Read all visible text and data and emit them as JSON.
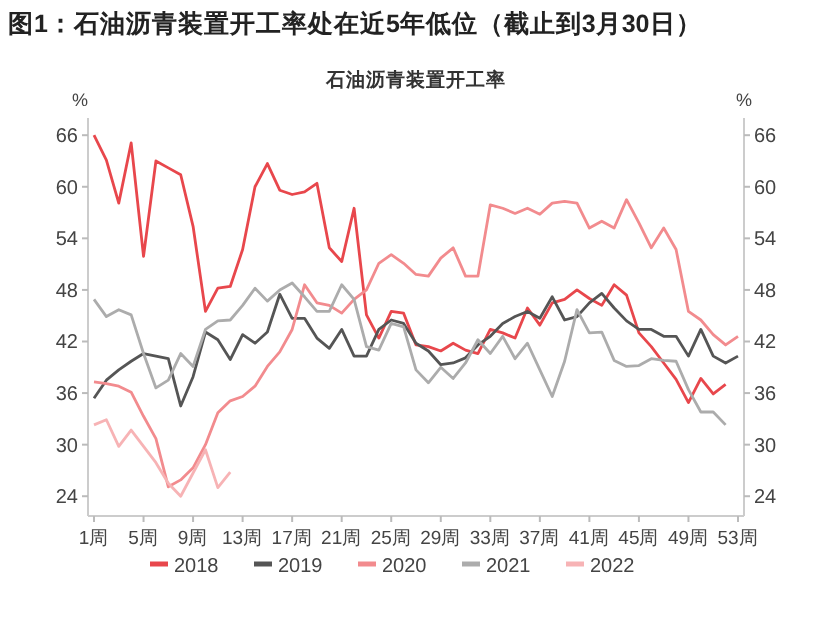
{
  "chart_data": {
    "type": "line",
    "title": "图1：石油沥青装置开工率处在近5年低位（截止到3月30日）",
    "subtitle": "石油沥青装置开工率",
    "ylabel": "%",
    "y2label": "%",
    "categories": [
      "1周",
      null,
      null,
      null,
      "5周",
      null,
      null,
      null,
      "9周",
      null,
      null,
      null,
      "13周",
      null,
      null,
      null,
      "17周",
      null,
      null,
      null,
      "21周",
      null,
      null,
      null,
      "25周",
      null,
      null,
      null,
      "29周",
      null,
      null,
      null,
      "33周",
      null,
      null,
      null,
      "37周",
      null,
      null,
      null,
      "41周",
      null,
      null,
      null,
      "45周",
      null,
      null,
      null,
      "49周",
      null,
      null,
      null,
      "53周"
    ],
    "ylim": [
      21.7,
      68
    ],
    "yticks": [
      24,
      30,
      36,
      42,
      48,
      54,
      60,
      66
    ],
    "y2lim": [
      21.7,
      68
    ],
    "y2ticks": [
      24,
      30,
      36,
      42,
      48,
      54,
      60,
      66
    ],
    "legend": "bottom",
    "series": [
      {
        "name": "2018",
        "color": "#e8474c",
        "values": [
          66,
          63.1,
          58.1,
          65.1,
          51.9,
          63,
          62.2,
          61.4,
          55.4,
          45.5,
          48.2,
          48.4,
          52.7,
          60,
          62.7,
          59.6,
          59.1,
          59.4,
          60.4,
          52.9,
          51.3,
          57.5,
          45.1,
          42.4,
          45.5,
          45.3,
          41.6,
          41.4,
          40.9,
          41.8,
          41,
          40.6,
          43.4,
          43,
          42.4,
          45.9,
          43.9,
          46.5,
          46.9,
          48,
          47,
          46.2,
          48.6,
          47.4,
          43,
          41.4,
          39.5,
          37.6,
          34.9,
          37.7,
          35.9,
          37,
          null
        ]
      },
      {
        "name": "2019",
        "color": "#555555",
        "values": [
          35.4,
          37.5,
          38.7,
          39.7,
          40.6,
          40.3,
          40,
          34.5,
          37.9,
          43.1,
          42.2,
          39.9,
          42.8,
          41.8,
          43.1,
          47.5,
          44.7,
          44.7,
          42.4,
          41.2,
          43.4,
          40.3,
          40.3,
          43.4,
          44.5,
          44.1,
          41.8,
          40.9,
          39.3,
          39.5,
          40.1,
          41.6,
          42.6,
          44.1,
          44.9,
          45.5,
          44.7,
          47.2,
          44.5,
          44.9,
          46.5,
          47.6,
          45.9,
          44.4,
          43.4,
          43.4,
          42.6,
          42.6,
          40.3,
          43.4,
          40.3,
          39.5,
          40.3
        ]
      },
      {
        "name": "2020",
        "color": "#f28b8e",
        "values": [
          37.3,
          37.1,
          36.8,
          36.1,
          33.3,
          30.7,
          25.1,
          25.9,
          27.3,
          30,
          33.7,
          35.1,
          35.6,
          36.8,
          39.1,
          40.8,
          43.4,
          48.6,
          46.5,
          46.2,
          45.3,
          46.9,
          48,
          51.1,
          52.1,
          51.1,
          49.8,
          49.6,
          51.7,
          52.9,
          49.6,
          49.6,
          57.9,
          57.5,
          56.9,
          57.5,
          56.8,
          58.1,
          58.3,
          58.1,
          55.2,
          56,
          55.2,
          58.5,
          55.8,
          52.9,
          55.2,
          52.7,
          45.5,
          44.5,
          42.8,
          41.6,
          42.6
        ]
      },
      {
        "name": "2021",
        "color": "#acacac",
        "values": [
          46.9,
          44.9,
          45.7,
          45.1,
          40.6,
          36.6,
          37.5,
          40.6,
          39.1,
          43.4,
          44.4,
          44.5,
          46.2,
          48.2,
          46.7,
          48,
          48.8,
          47.2,
          45.5,
          45.5,
          48.6,
          46.9,
          41.4,
          41,
          44.1,
          43.7,
          38.7,
          37.2,
          39,
          37.7,
          39.5,
          42.2,
          40.6,
          42.6,
          40,
          41.8,
          38.7,
          35.6,
          39.7,
          45.7,
          43,
          43.1,
          39.8,
          39.1,
          39.2,
          40,
          39.8,
          39.7,
          36.4,
          33.8,
          33.8,
          32.3,
          null
        ]
      },
      {
        "name": "2022",
        "color": "#f7b3b5",
        "values": [
          32.3,
          32.9,
          29.8,
          31.7,
          29.8,
          27.9,
          25.5,
          24,
          26.7,
          29.4,
          25,
          26.8,
          null,
          null,
          null,
          null,
          null,
          null,
          null,
          null,
          null,
          null,
          null,
          null,
          null,
          null,
          null,
          null,
          null,
          null,
          null,
          null,
          null,
          null,
          null,
          null,
          null,
          null,
          null,
          null,
          null,
          null,
          null,
          null,
          null,
          null,
          null,
          null,
          null,
          null,
          null,
          null,
          null
        ]
      }
    ]
  }
}
